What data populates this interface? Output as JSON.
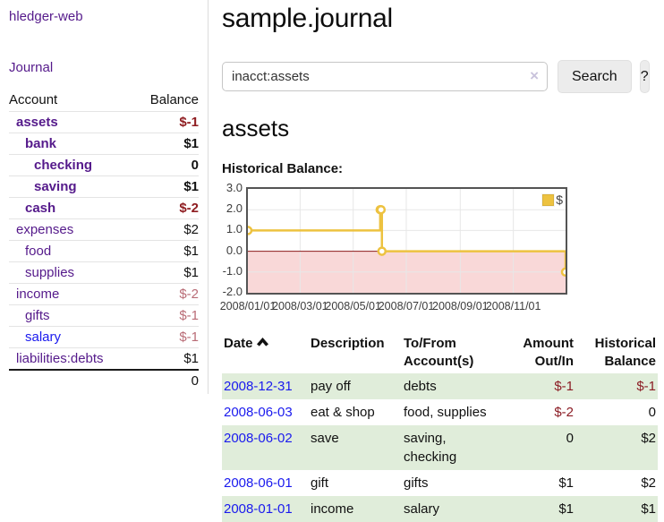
{
  "app": {
    "brand": "hledger-web"
  },
  "nav": {
    "journal": "Journal"
  },
  "sidebar": {
    "account_header": "Account",
    "balance_header": "Balance",
    "accounts": [
      {
        "name": "assets",
        "balance": "$-1"
      },
      {
        "name": "bank",
        "balance": "$1"
      },
      {
        "name": "checking",
        "balance": "0"
      },
      {
        "name": "saving",
        "balance": "$1"
      },
      {
        "name": "cash",
        "balance": "$-2"
      },
      {
        "name": "expenses",
        "balance": "$2"
      },
      {
        "name": "food",
        "balance": "$1"
      },
      {
        "name": "supplies",
        "balance": "$1"
      },
      {
        "name": "income",
        "balance": "$-2"
      },
      {
        "name": "gifts",
        "balance": "$-1"
      },
      {
        "name": "salary",
        "balance": "$-1"
      },
      {
        "name": "liabilities:debts",
        "balance": "$1"
      }
    ],
    "total": "0"
  },
  "main": {
    "title": "sample.journal",
    "search": {
      "value": "inacct:assets",
      "clear": "×",
      "search_button": "Search",
      "help_button": "?"
    },
    "account_heading": "assets",
    "chart_title": "Historical Balance:"
  },
  "chart_data": {
    "type": "line",
    "title": "Historical Balance",
    "series": [
      {
        "name": "$",
        "color": "#edc240",
        "step": true,
        "points": [
          [
            "2008/01/01",
            1
          ],
          [
            "2008/06/01",
            2
          ],
          [
            "2008/06/02",
            2
          ],
          [
            "2008/06/03",
            0
          ],
          [
            "2008/12/31",
            -1
          ]
        ]
      }
    ],
    "x_range": [
      "2008/01/01",
      "2008/12/31"
    ],
    "ylim": [
      -2,
      3
    ],
    "x_ticks": [
      "2008/01/01",
      "2008/03/01",
      "2008/05/01",
      "2008/07/01",
      "2008/09/01",
      "2008/11/01"
    ],
    "y_ticks": [
      "3.0",
      "2.0",
      "1.0",
      "0.0",
      "-1.0",
      "-2.0"
    ],
    "grid": true,
    "legend_position": "top-right",
    "grid_color": "#e7e7e7",
    "border_color": "#545454",
    "negative_region_color": "#f9d8d8",
    "zero_line_color": "#8b1a1a"
  },
  "register": {
    "headers": {
      "date": "Date",
      "description": "Description",
      "accounts": "To/From Account(s)",
      "amount": "Amount Out/In",
      "balance": "Historical Balance"
    },
    "rows": [
      {
        "date": "2008-12-31",
        "description": "pay off",
        "accounts": "debts",
        "amount": "$-1",
        "balance": "$-1"
      },
      {
        "date": "2008-06-03",
        "description": "eat & shop",
        "accounts": "food, supplies",
        "amount": "$-2",
        "balance": "0"
      },
      {
        "date": "2008-06-02",
        "description": "save",
        "accounts": "saving, checking",
        "amount": "0",
        "balance": "$2"
      },
      {
        "date": "2008-06-01",
        "description": "gift",
        "accounts": "gifts",
        "amount": "$1",
        "balance": "$2"
      },
      {
        "date": "2008-01-01",
        "description": "income",
        "accounts": "salary",
        "amount": "$1",
        "balance": "$1"
      }
    ]
  },
  "colors": {
    "link_purple": "#551a8b",
    "link_blue": "#1a1aee",
    "negative_strong": "#8f1d21",
    "negative_soft": "#b96c76",
    "table_negative": "#8b1c24",
    "row_stripe_green": "#e0edda",
    "series_yellow": "#edc240"
  }
}
